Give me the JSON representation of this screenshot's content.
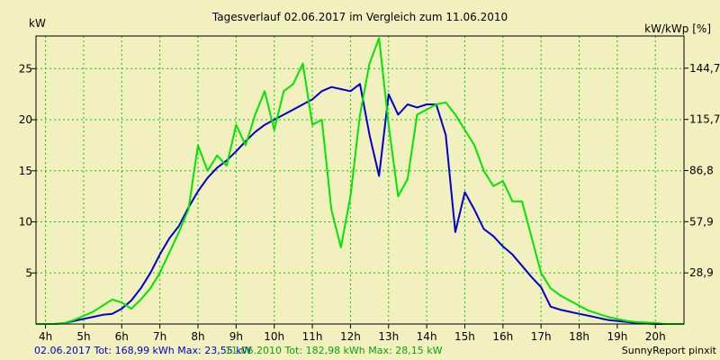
{
  "chart_data": {
    "type": "line",
    "title": "Tagesverlauf 02.06.2017 im Vergleich zum 11.06.2010",
    "ylabel_left": "kW",
    "ylabel_right": "kW/kWp [%]",
    "xlim": [
      3.75,
      20.75
    ],
    "ylim": [
      0,
      28.2
    ],
    "x_ticks": [
      {
        "value": 4,
        "label": "4h"
      },
      {
        "value": 5,
        "label": "5h"
      },
      {
        "value": 6,
        "label": "6h"
      },
      {
        "value": 7,
        "label": "7h"
      },
      {
        "value": 8,
        "label": "8h"
      },
      {
        "value": 9,
        "label": "9h"
      },
      {
        "value": 10,
        "label": "10h"
      },
      {
        "value": 11,
        "label": "11h"
      },
      {
        "value": 12,
        "label": "12h"
      },
      {
        "value": 13,
        "label": "13h"
      },
      {
        "value": 14,
        "label": "14h"
      },
      {
        "value": 15,
        "label": "15h"
      },
      {
        "value": 16,
        "label": "16h"
      },
      {
        "value": 17,
        "label": "17h"
      },
      {
        "value": 18,
        "label": "18h"
      },
      {
        "value": 19,
        "label": "19h"
      },
      {
        "value": 20,
        "label": "20h"
      }
    ],
    "y_ticks_left": [
      {
        "value": 5,
        "label": "5"
      },
      {
        "value": 10,
        "label": "10"
      },
      {
        "value": 15,
        "label": "15"
      },
      {
        "value": 20,
        "label": "20"
      },
      {
        "value": 25,
        "label": "25"
      }
    ],
    "y_ticks_right": [
      {
        "value": 28.9,
        "label": "28,9"
      },
      {
        "value": 57.9,
        "label": "57,9"
      },
      {
        "value": 86.8,
        "label": "86,8"
      },
      {
        "value": 115.7,
        "label": "115,7"
      },
      {
        "value": 144.7,
        "label": "144,7"
      }
    ],
    "right_axis_max": 162.9,
    "grid": true,
    "series": [
      {
        "color": "#0000cc",
        "x": [
          3.75,
          4.25,
          4.5,
          4.75,
          5.0,
          5.25,
          5.5,
          5.75,
          6.0,
          6.25,
          6.5,
          6.75,
          7.0,
          7.25,
          7.5,
          7.75,
          8.0,
          8.25,
          8.5,
          8.75,
          9.0,
          9.25,
          9.5,
          9.75,
          10.0,
          10.25,
          10.5,
          10.75,
          11.0,
          11.25,
          11.5,
          11.75,
          12.0,
          12.25,
          12.5,
          12.75,
          13.0,
          13.25,
          13.5,
          13.75,
          14.0,
          14.25,
          14.5,
          14.75,
          15.0,
          15.25,
          15.5,
          15.75,
          16.0,
          16.25,
          16.5,
          16.75,
          17.0,
          17.25,
          17.5,
          17.75,
          18.0,
          18.25,
          18.5,
          18.75,
          19.0,
          19.25,
          19.5,
          20.0,
          20.25,
          20.75
        ],
        "y": [
          0,
          0,
          0.1,
          0.3,
          0.5,
          0.7,
          0.9,
          1.0,
          1.5,
          2.3,
          3.5,
          5.0,
          6.8,
          8.4,
          9.6,
          11.4,
          13.0,
          14.3,
          15.3,
          16.0,
          16.9,
          17.9,
          18.8,
          19.5,
          20.0,
          20.5,
          21.0,
          21.5,
          22.0,
          22.8,
          23.2,
          23.0,
          22.8,
          23.5,
          18.5,
          14.5,
          22.5,
          20.5,
          21.5,
          21.2,
          21.5,
          21.5,
          18.5,
          9.0,
          12.9,
          11.2,
          9.3,
          8.6,
          7.6,
          6.8,
          5.7,
          4.6,
          3.6,
          1.7,
          1.4,
          1.2,
          1.0,
          0.8,
          0.6,
          0.4,
          0.3,
          0.2,
          0.1,
          0,
          0,
          0
        ]
      },
      {
        "color": "#00e600",
        "x": [
          3.75,
          4.25,
          4.5,
          4.75,
          5.0,
          5.25,
          5.5,
          5.75,
          6.0,
          6.25,
          6.5,
          6.75,
          7.0,
          7.25,
          7.5,
          7.75,
          8.0,
          8.25,
          8.5,
          8.75,
          9.0,
          9.25,
          9.5,
          9.75,
          10.0,
          10.25,
          10.5,
          10.75,
          11.0,
          11.25,
          11.5,
          11.75,
          12.0,
          12.25,
          12.5,
          12.75,
          13.0,
          13.25,
          13.5,
          13.75,
          14.0,
          14.25,
          14.5,
          14.75,
          15.0,
          15.25,
          15.5,
          15.75,
          16.0,
          16.25,
          16.5,
          16.75,
          17.0,
          17.25,
          17.5,
          17.75,
          18.0,
          18.25,
          18.5,
          18.75,
          19.0,
          19.25,
          19.5,
          20.0,
          20.25,
          20.75
        ],
        "y": [
          0,
          0,
          0.1,
          0.4,
          0.8,
          1.2,
          1.8,
          2.4,
          2.1,
          1.5,
          2.4,
          3.5,
          5.0,
          7.0,
          9.0,
          11.2,
          17.5,
          15.0,
          16.5,
          15.5,
          19.5,
          17.5,
          20.5,
          22.8,
          19.0,
          22.8,
          23.5,
          25.5,
          19.5,
          20.0,
          11.2,
          7.5,
          12.5,
          20.5,
          25.5,
          28.0,
          19.5,
          12.5,
          14.2,
          20.5,
          21.0,
          21.5,
          21.7,
          20.5,
          19.0,
          17.5,
          15.0,
          13.5,
          14.0,
          12.0,
          12.0,
          8.5,
          5.0,
          3.5,
          2.8,
          2.3,
          1.8,
          1.3,
          1.0,
          0.7,
          0.5,
          0.3,
          0.2,
          0.1,
          0,
          0
        ]
      }
    ]
  },
  "footer": {
    "series1_text": "02.06.2017 Tot: 168,99 kWh Max: 23,55 kW",
    "series2_text": "11.06.2010 Tot: 182,98 kWh Max: 28,15 kW",
    "credit": "SunnyReport pinxit"
  }
}
